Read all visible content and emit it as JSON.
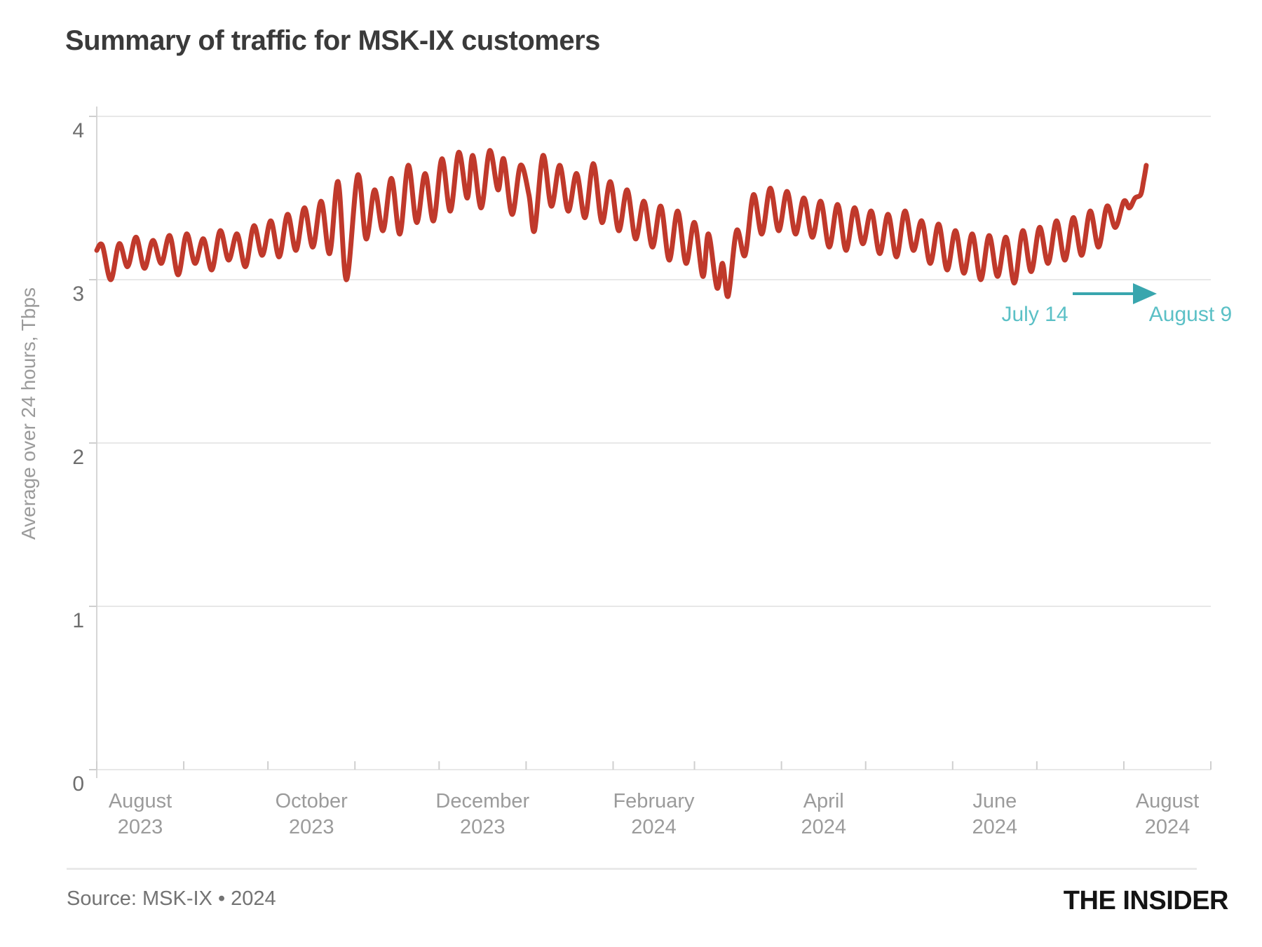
{
  "title": "Summary of traffic for MSK-IX customers",
  "source": "Source: MSK-IX • 2024",
  "logo": "THE INSIDER",
  "colors": {
    "line": "#c0392b",
    "grid": "#e8e8e8",
    "axis": "#d6d6d6",
    "tick": "#cfcfcf",
    "annotation_arrow": "#39a6ae",
    "annotation_text": "#5bc0c6",
    "title_text": "#3a3a3a",
    "axis_label_text": "#9b9b9b",
    "ytick_text": "#6e6e6e"
  },
  "chart_data": {
    "type": "line",
    "title": "Summary of traffic for MSK-IX customers",
    "xlabel": "",
    "ylabel": "Average over 24 hours, Tbps",
    "ylim": [
      0,
      4
    ],
    "grid": "horizontal",
    "legend": "none",
    "y_ticks": [
      "4",
      "3",
      "2",
      "1",
      "0"
    ],
    "y_tick_values": [
      4,
      3,
      2,
      1,
      0
    ],
    "x_ticks": [
      {
        "month": "August",
        "year": "2023"
      },
      {
        "month": "October",
        "year": "2023"
      },
      {
        "month": "December",
        "year": "2023"
      },
      {
        "month": "February",
        "year": "2024"
      },
      {
        "month": "April",
        "year": "2024"
      },
      {
        "month": "June",
        "year": "2024"
      },
      {
        "month": "August",
        "year": "2024"
      }
    ],
    "x_tick_center_days": [
      15.5,
      76.5,
      137.5,
      198.5,
      259,
      320,
      381.5
    ],
    "month_start_days": [
      0,
      31,
      61,
      92,
      122,
      153,
      184,
      213,
      244,
      274,
      305,
      335,
      366,
      397
    ],
    "x_range_description": "days since 2023-08-01, through 2024-09-01",
    "annotations": {
      "start_label": "July 14",
      "end_label": "August 9",
      "meaning": "arrow marks the period July 14 to August 9, 2024 ending at the final traffic spike"
    },
    "series": [
      {
        "name": "Average traffic over 24 hours, Tbps",
        "color": "#c0392b",
        "points": [
          [
            0,
            3.18
          ],
          [
            2,
            3.21
          ],
          [
            5,
            3.0
          ],
          [
            8,
            3.22
          ],
          [
            11,
            3.08
          ],
          [
            14,
            3.26
          ],
          [
            17,
            3.07
          ],
          [
            20,
            3.24
          ],
          [
            23,
            3.1
          ],
          [
            26,
            3.27
          ],
          [
            29,
            3.03
          ],
          [
            32,
            3.28
          ],
          [
            35,
            3.1
          ],
          [
            38,
            3.25
          ],
          [
            41,
            3.06
          ],
          [
            44,
            3.3
          ],
          [
            47,
            3.12
          ],
          [
            50,
            3.28
          ],
          [
            53,
            3.08
          ],
          [
            56,
            3.33
          ],
          [
            59,
            3.15
          ],
          [
            62,
            3.36
          ],
          [
            65,
            3.14
          ],
          [
            68,
            3.4
          ],
          [
            71,
            3.18
          ],
          [
            74,
            3.44
          ],
          [
            77,
            3.2
          ],
          [
            80,
            3.48
          ],
          [
            83,
            3.16
          ],
          [
            86,
            3.6
          ],
          [
            89,
            3.0
          ],
          [
            93,
            3.64
          ],
          [
            96,
            3.25
          ],
          [
            99,
            3.55
          ],
          [
            102,
            3.3
          ],
          [
            105,
            3.62
          ],
          [
            108,
            3.28
          ],
          [
            111,
            3.7
          ],
          [
            114,
            3.35
          ],
          [
            117,
            3.65
          ],
          [
            120,
            3.36
          ],
          [
            123,
            3.74
          ],
          [
            126,
            3.42
          ],
          [
            129,
            3.78
          ],
          [
            132,
            3.5
          ],
          [
            134,
            3.76
          ],
          [
            137,
            3.44
          ],
          [
            140,
            3.79
          ],
          [
            143,
            3.55
          ],
          [
            145,
            3.74
          ],
          [
            148,
            3.4
          ],
          [
            151,
            3.7
          ],
          [
            154,
            3.52
          ],
          [
            156,
            3.3
          ],
          [
            159,
            3.76
          ],
          [
            162,
            3.45
          ],
          [
            165,
            3.7
          ],
          [
            168,
            3.42
          ],
          [
            171,
            3.65
          ],
          [
            174,
            3.38
          ],
          [
            177,
            3.71
          ],
          [
            180,
            3.35
          ],
          [
            183,
            3.6
          ],
          [
            186,
            3.3
          ],
          [
            189,
            3.55
          ],
          [
            192,
            3.25
          ],
          [
            195,
            3.48
          ],
          [
            198,
            3.2
          ],
          [
            201,
            3.45
          ],
          [
            204,
            3.12
          ],
          [
            207,
            3.42
          ],
          [
            210,
            3.1
          ],
          [
            213,
            3.35
          ],
          [
            216,
            3.02
          ],
          [
            218,
            3.28
          ],
          [
            221,
            2.95
          ],
          [
            223,
            3.1
          ],
          [
            225,
            2.9
          ],
          [
            228,
            3.3
          ],
          [
            231,
            3.15
          ],
          [
            234,
            3.52
          ],
          [
            237,
            3.28
          ],
          [
            240,
            3.56
          ],
          [
            243,
            3.3
          ],
          [
            246,
            3.54
          ],
          [
            249,
            3.28
          ],
          [
            252,
            3.5
          ],
          [
            255,
            3.26
          ],
          [
            258,
            3.48
          ],
          [
            261,
            3.2
          ],
          [
            264,
            3.46
          ],
          [
            267,
            3.18
          ],
          [
            270,
            3.44
          ],
          [
            273,
            3.22
          ],
          [
            276,
            3.42
          ],
          [
            279,
            3.16
          ],
          [
            282,
            3.4
          ],
          [
            285,
            3.14
          ],
          [
            288,
            3.42
          ],
          [
            291,
            3.18
          ],
          [
            294,
            3.36
          ],
          [
            297,
            3.1
          ],
          [
            300,
            3.34
          ],
          [
            303,
            3.06
          ],
          [
            306,
            3.3
          ],
          [
            309,
            3.04
          ],
          [
            312,
            3.28
          ],
          [
            315,
            3.0
          ],
          [
            318,
            3.27
          ],
          [
            321,
            3.02
          ],
          [
            324,
            3.26
          ],
          [
            327,
            2.98
          ],
          [
            330,
            3.3
          ],
          [
            333,
            3.05
          ],
          [
            336,
            3.32
          ],
          [
            339,
            3.1
          ],
          [
            342,
            3.36
          ],
          [
            345,
            3.12
          ],
          [
            348,
            3.38
          ],
          [
            351,
            3.15
          ],
          [
            354,
            3.42
          ],
          [
            357,
            3.2
          ],
          [
            360,
            3.45
          ],
          [
            363,
            3.32
          ],
          [
            366,
            3.48
          ],
          [
            368,
            3.44
          ],
          [
            370,
            3.5
          ],
          [
            372,
            3.52
          ],
          [
            373,
            3.6
          ],
          [
            374,
            3.7
          ]
        ]
      }
    ]
  }
}
